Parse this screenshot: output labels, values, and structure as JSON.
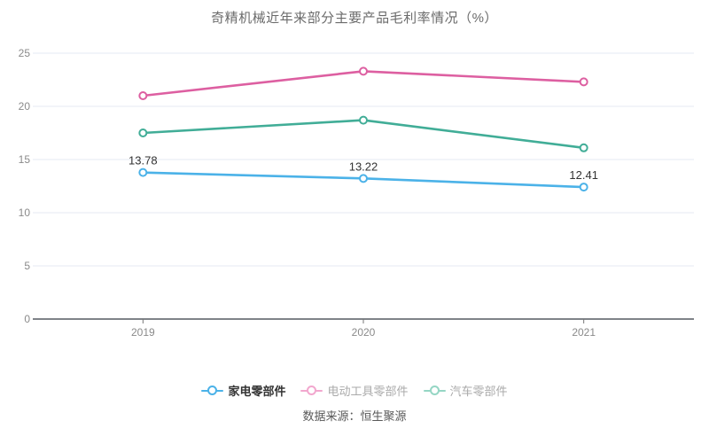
{
  "title": "奇精机械近年来部分主要产品毛利率情况（%）",
  "footer": {
    "source_text": "数据来源：恒生聚源"
  },
  "legend": {
    "items": [
      {
        "label": "家电零部件",
        "marker_color": "#4bb2e8",
        "label_color": "#333333",
        "bold": true
      },
      {
        "label": "电动工具零部件",
        "marker_color": "#f2a7ce",
        "label_color": "#aaaaaa",
        "bold": false
      },
      {
        "label": "汽车零部件",
        "marker_color": "#95d6c4",
        "label_color": "#aaaaaa",
        "bold": false
      }
    ]
  },
  "chart_data": {
    "type": "line",
    "title": "奇精机械近年来部分主要产品毛利率情况（%）",
    "categories": [
      "2019",
      "2020",
      "2021"
    ],
    "series": [
      {
        "name": "家电零部件",
        "color": "#4bb2e8",
        "values": [
          13.78,
          13.22,
          12.41
        ],
        "labels": [
          "13.78",
          "13.22",
          "12.41"
        ]
      },
      {
        "name": "电动工具零部件",
        "color": "#dd5fa1",
        "values": [
          21.0,
          23.3,
          22.3
        ],
        "labels": []
      },
      {
        "name": "汽车零部件",
        "color": "#41ad97",
        "values": [
          17.5,
          18.7,
          16.1
        ],
        "labels": []
      }
    ],
    "xlabel": "",
    "ylabel": "",
    "ylim": [
      0,
      25
    ],
    "yticks": [
      0,
      5,
      10,
      15,
      20,
      25
    ],
    "grid": true,
    "legend_position": "bottom",
    "style": {
      "grid_line_color": "#e4e9f3",
      "axis_line_color": "#555a60",
      "tick_color": "#777777",
      "tick_label_color": "#8a8a8a",
      "data_label_color": "#333333",
      "background": "#ffffff"
    }
  }
}
